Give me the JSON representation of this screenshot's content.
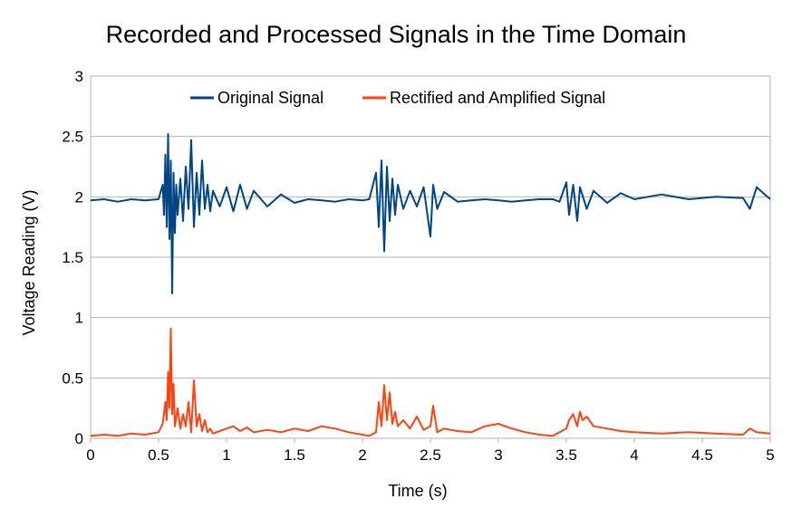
{
  "chart_data": {
    "type": "line",
    "title": "Recorded and Processed Signals in the Time Domain",
    "xlabel": "Time (s)",
    "ylabel": "Voltage Reading (V)",
    "xlim": [
      0,
      5
    ],
    "ylim": [
      0,
      3
    ],
    "xticks": [
      "0",
      "0.5",
      "1",
      "1.5",
      "2",
      "2.5",
      "3",
      "3.5",
      "4",
      "4.5",
      "5"
    ],
    "yticks": [
      "0",
      "0.5",
      "1",
      "1.5",
      "2",
      "2.5",
      "3"
    ],
    "grid": "horizontal",
    "legend": "top-center",
    "series": [
      {
        "name": "Original Signal",
        "color": "#004586",
        "x": [
          0,
          0.1,
          0.2,
          0.3,
          0.4,
          0.5,
          0.53,
          0.54,
          0.55,
          0.56,
          0.57,
          0.58,
          0.59,
          0.6,
          0.61,
          0.62,
          0.63,
          0.64,
          0.66,
          0.68,
          0.7,
          0.72,
          0.74,
          0.76,
          0.78,
          0.8,
          0.82,
          0.84,
          0.86,
          0.88,
          0.9,
          0.95,
          1.0,
          1.05,
          1.1,
          1.15,
          1.2,
          1.3,
          1.4,
          1.5,
          1.6,
          1.7,
          1.8,
          1.9,
          2.0,
          2.05,
          2.1,
          2.12,
          2.14,
          2.16,
          2.18,
          2.2,
          2.22,
          2.24,
          2.26,
          2.3,
          2.35,
          2.4,
          2.45,
          2.5,
          2.52,
          2.55,
          2.6,
          2.7,
          2.8,
          2.9,
          3.0,
          3.1,
          3.2,
          3.3,
          3.4,
          3.45,
          3.5,
          3.52,
          3.55,
          3.58,
          3.6,
          3.65,
          3.7,
          3.8,
          3.9,
          4.0,
          4.2,
          4.4,
          4.6,
          4.8,
          4.85,
          4.9,
          5.0
        ],
        "y": [
          1.97,
          1.98,
          1.96,
          1.98,
          1.97,
          1.98,
          2.1,
          1.85,
          2.35,
          1.75,
          2.52,
          1.65,
          2.3,
          1.2,
          2.2,
          1.7,
          2.1,
          1.85,
          2.15,
          1.8,
          2.25,
          1.9,
          2.47,
          1.75,
          2.2,
          1.85,
          2.3,
          1.9,
          2.1,
          1.88,
          2.05,
          1.92,
          2.08,
          1.88,
          2.1,
          1.9,
          2.05,
          1.92,
          2.02,
          1.95,
          1.98,
          1.97,
          1.96,
          1.98,
          1.97,
          1.98,
          2.2,
          1.75,
          2.3,
          1.55,
          2.25,
          1.8,
          2.15,
          1.85,
          2.1,
          1.9,
          2.05,
          1.92,
          2.08,
          1.67,
          2.1,
          1.9,
          2.04,
          1.96,
          1.97,
          1.98,
          1.97,
          1.96,
          1.97,
          1.98,
          1.98,
          1.96,
          2.12,
          1.85,
          2.1,
          1.8,
          2.08,
          1.9,
          2.05,
          1.95,
          2.03,
          1.98,
          2.02,
          1.98,
          2.0,
          1.99,
          1.9,
          2.08,
          1.98
        ]
      },
      {
        "name": "Rectified and Amplified Signal",
        "color": "#ff420e",
        "x": [
          0,
          0.1,
          0.2,
          0.3,
          0.4,
          0.5,
          0.53,
          0.54,
          0.55,
          0.56,
          0.57,
          0.58,
          0.59,
          0.6,
          0.61,
          0.62,
          0.64,
          0.66,
          0.68,
          0.7,
          0.72,
          0.74,
          0.76,
          0.78,
          0.8,
          0.82,
          0.84,
          0.86,
          0.88,
          0.9,
          0.95,
          1.0,
          1.05,
          1.1,
          1.15,
          1.2,
          1.3,
          1.4,
          1.5,
          1.6,
          1.7,
          1.8,
          1.9,
          2.0,
          2.05,
          2.1,
          2.12,
          2.14,
          2.16,
          2.18,
          2.2,
          2.22,
          2.24,
          2.26,
          2.3,
          2.35,
          2.4,
          2.45,
          2.5,
          2.52,
          2.55,
          2.6,
          2.7,
          2.8,
          2.9,
          3.0,
          3.1,
          3.2,
          3.3,
          3.4,
          3.45,
          3.5,
          3.52,
          3.55,
          3.58,
          3.6,
          3.62,
          3.65,
          3.7,
          3.8,
          3.9,
          4.0,
          4.2,
          4.4,
          4.6,
          4.8,
          4.85,
          4.9,
          5.0
        ],
        "y": [
          0.02,
          0.03,
          0.02,
          0.04,
          0.03,
          0.05,
          0.12,
          0.2,
          0.3,
          0.15,
          0.55,
          0.25,
          0.91,
          0.2,
          0.45,
          0.1,
          0.25,
          0.08,
          0.2,
          0.1,
          0.3,
          0.05,
          0.48,
          0.1,
          0.2,
          0.06,
          0.15,
          0.05,
          0.08,
          0.04,
          0.06,
          0.08,
          0.1,
          0.06,
          0.09,
          0.05,
          0.07,
          0.05,
          0.08,
          0.06,
          0.1,
          0.08,
          0.05,
          0.03,
          0.02,
          0.05,
          0.3,
          0.1,
          0.44,
          0.15,
          0.38,
          0.12,
          0.22,
          0.1,
          0.15,
          0.08,
          0.18,
          0.07,
          0.1,
          0.27,
          0.05,
          0.08,
          0.06,
          0.05,
          0.1,
          0.12,
          0.08,
          0.05,
          0.03,
          0.02,
          0.05,
          0.08,
          0.15,
          0.2,
          0.1,
          0.22,
          0.15,
          0.18,
          0.1,
          0.08,
          0.06,
          0.05,
          0.04,
          0.05,
          0.04,
          0.03,
          0.08,
          0.05,
          0.04
        ]
      }
    ]
  }
}
